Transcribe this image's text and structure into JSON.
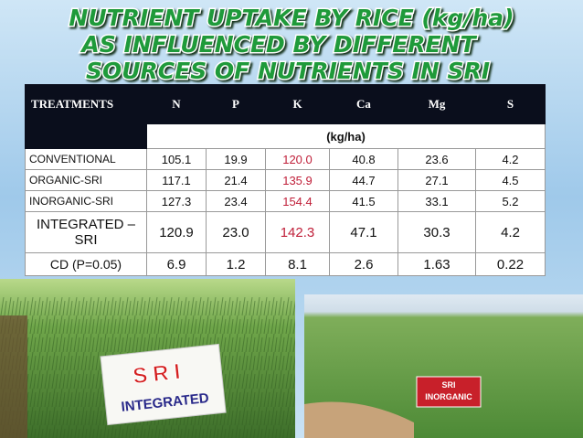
{
  "header": {
    "title_lines": [
      "NUTRIENT UPTAKE BY RICE (kg/ha)",
      "AS  INFLUENCED  BY DIFFERENT",
      "SOURCES OF NUTRIENTS  IN SRI"
    ]
  },
  "table": {
    "columns": [
      "TREATMENTS",
      "N",
      "P",
      "K",
      "Ca",
      "Mg",
      "S"
    ],
    "unit": "(kg/ha)",
    "rows": [
      [
        "CONVENTIONAL",
        "105.1",
        "19.9",
        "120.0",
        "40.8",
        "23.6",
        "4.2"
      ],
      [
        "ORGANIC-SRI",
        "117.1",
        "21.4",
        "135.9",
        "44.7",
        "27.1",
        "4.5"
      ],
      [
        "INORGANIC-SRI",
        "127.3",
        "23.4",
        "154.4",
        "41.5",
        "33.1",
        "5.2"
      ],
      [
        "INTEGRATED – SRI",
        "120.9",
        "23.0",
        "142.3",
        "47.1",
        "30.3",
        "4.2"
      ],
      [
        "CD (P=0.05)",
        "6.9",
        "1.2",
        "8.1",
        "2.6",
        "1.63",
        "0.22"
      ]
    ]
  },
  "photos": {
    "left_sign": [
      "SRI",
      "INTEGRATED"
    ],
    "right_label": [
      "SRI",
      "INORGANIC"
    ]
  }
}
